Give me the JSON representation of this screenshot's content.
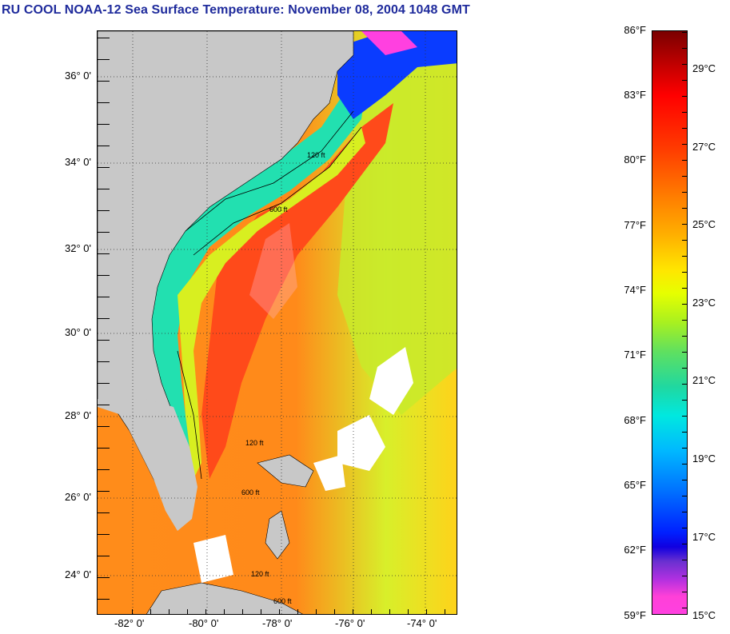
{
  "title": "RU COOL  NOAA-12  Sea Surface Temperature:  November 08, 2004 1048 GMT",
  "map": {
    "lat_labels": [
      "36° 0'",
      "34° 0'",
      "32° 0'",
      "30° 0'",
      "28° 0'",
      "26° 0'",
      "24° 0'"
    ],
    "lon_labels": [
      "-82° 0'",
      "-80° 0'",
      "-78° 0'",
      "-76° 0'",
      "-74° 0'"
    ],
    "contour_labels": [
      "120 ft",
      "600 ft",
      "120 ft",
      "600 ft",
      "120 ft",
      "600 ft"
    ],
    "colors": {
      "land": "#c8c8c8",
      "warm": "#ff5a1e",
      "cloud": "#ffffff"
    }
  },
  "colorbar": {
    "fahrenheit": [
      "86°F",
      "83°F",
      "80°F",
      "77°F",
      "74°F",
      "71°F",
      "68°F",
      "65°F",
      "62°F",
      "59°F"
    ],
    "celsius": [
      "29°C",
      "27°C",
      "25°C",
      "23°C",
      "21°C",
      "19°C",
      "17°C",
      "15°C"
    ]
  }
}
